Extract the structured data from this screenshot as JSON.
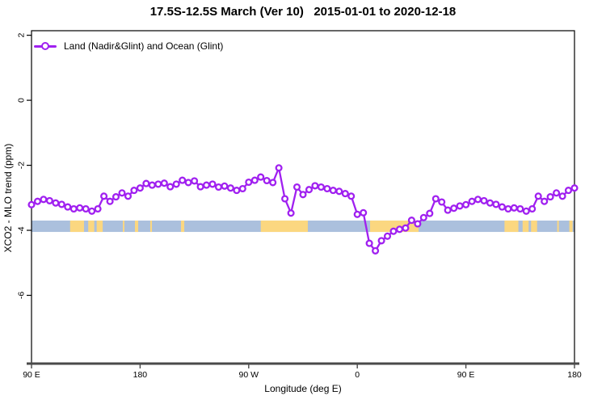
{
  "title": "17.5S-12.5S March (Ver 10)   2015-01-01 to 2020-12-18",
  "legend": {
    "label": "Land (Nadir&Glint) and Ocean (Glint)",
    "marker": "open-circle-on-line",
    "color": "#A020F0"
  },
  "axes": {
    "x": {
      "label": "Longitude (deg E)",
      "ticks": [
        {
          "deg": 90,
          "label": "90 E"
        },
        {
          "deg": 180,
          "label": "180"
        },
        {
          "deg": 270,
          "label": "90 W"
        },
        {
          "deg": 360,
          "label": "0"
        },
        {
          "deg": 450,
          "label": "90 E"
        },
        {
          "deg": 540,
          "label": "180"
        }
      ]
    },
    "y": {
      "label": "XCO2 - MLO trend (ppm)",
      "ticks": [
        {
          "value": 2,
          "label": "2"
        },
        {
          "value": 0,
          "label": "0"
        },
        {
          "value": -2,
          "label": "-2"
        },
        {
          "value": -4,
          "label": "-4"
        },
        {
          "value": -6,
          "label": "-6"
        }
      ]
    }
  },
  "colors": {
    "line": "#A020F0",
    "marker_fill": "#FFFFFF",
    "axis": "#000000",
    "thick_axis": "#4a4a4a",
    "ocean_band": "#ABC0DD",
    "land_band": "#FBD780",
    "background": "#FFFFFF"
  },
  "chart_data": {
    "type": "line",
    "title": "17.5S-12.5S March (Ver 10)   2015-01-01 to 2020-12-18",
    "xlabel": "Longitude (deg E)",
    "ylabel": "XCO2 - MLO trend (ppm)",
    "xlim": [
      90,
      540
    ],
    "ylim": [
      -8.1,
      2.14
    ],
    "x_axis_note": "longitude wraps eastward: 90E to 180 to 90W to 0 to 90E to 180; 5-degree bins",
    "x_start_deg": 90,
    "x_step_deg": 5,
    "grid": false,
    "legend_position": "top-left",
    "series": [
      {
        "name": "Land (Nadir&Glint) and Ocean (Glint)",
        "color": "#A020F0",
        "marker": "open-circle",
        "values": [
          -3.21,
          -3.11,
          -3.05,
          -3.09,
          -3.16,
          -3.2,
          -3.28,
          -3.34,
          -3.31,
          -3.34,
          -3.41,
          -3.34,
          -2.95,
          -3.11,
          -2.97,
          -2.85,
          -2.95,
          -2.77,
          -2.7,
          -2.56,
          -2.61,
          -2.58,
          -2.55,
          -2.66,
          -2.58,
          -2.46,
          -2.53,
          -2.48,
          -2.66,
          -2.61,
          -2.58,
          -2.67,
          -2.64,
          -2.7,
          -2.77,
          -2.72,
          -2.52,
          -2.46,
          -2.36,
          -2.47,
          -2.53,
          -2.08,
          -3.03,
          -3.47,
          -2.67,
          -2.9,
          -2.75,
          -2.63,
          -2.67,
          -2.72,
          -2.77,
          -2.8,
          -2.87,
          -2.95,
          -3.51,
          -3.46,
          -4.4,
          -4.63,
          -4.32,
          -4.18,
          -4.03,
          -3.97,
          -3.93,
          -3.69,
          -3.8,
          -3.61,
          -3.48,
          -3.03,
          -3.13,
          -3.38,
          -3.32,
          -3.25,
          -3.21,
          -3.11,
          -3.05,
          -3.09,
          -3.16,
          -3.2,
          -3.28,
          -3.34,
          -3.31,
          -3.34,
          -3.41,
          -3.34,
          -2.95,
          -3.11,
          -2.97,
          -2.85,
          -2.95,
          -2.77,
          -2.7
        ]
      }
    ],
    "surface_band": {
      "description": "land/ocean indicator strip along longitude",
      "value_top": -3.7,
      "value_bottom": -4.05,
      "ocean_color": "#ABC0DD",
      "land_color": "#FBD780",
      "land_segments_deg": [
        [
          122.0,
          133.5
        ],
        [
          137.0,
          142.0
        ],
        [
          144.0,
          149.0
        ],
        [
          165.7,
          167.0
        ],
        [
          175.7,
          178.4
        ],
        [
          188.4,
          189.8
        ],
        [
          213.9,
          216.6
        ],
        [
          280.0,
          319.0
        ],
        [
          370.6,
          410.8
        ],
        [
          482.0,
          493.5
        ],
        [
          497.0,
          502.0
        ],
        [
          504.0,
          509.0
        ],
        [
          525.7,
          527.0
        ],
        [
          535.7,
          538.4
        ]
      ]
    }
  }
}
